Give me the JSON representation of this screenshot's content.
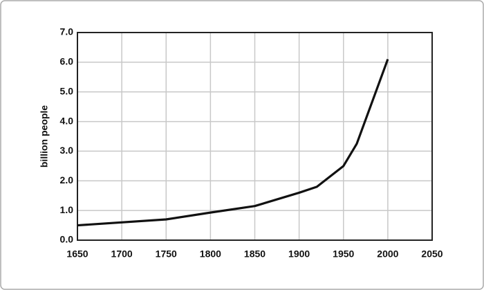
{
  "chart_data": {
    "type": "line",
    "y_label": "billion people",
    "x": [
      1650,
      1750,
      1800,
      1850,
      1900,
      1920,
      1950,
      1965,
      2000
    ],
    "series": [
      {
        "color": "#111111",
        "values": [
          0.5,
          0.7,
          0.93,
          1.15,
          1.6,
          1.8,
          2.5,
          3.25,
          6.1
        ]
      }
    ],
    "xlim": [
      1650,
      2050
    ],
    "xticks": [
      1650,
      1700,
      1750,
      1800,
      1850,
      1900,
      1950,
      2000,
      2050
    ],
    "ylim": [
      0,
      7
    ],
    "yticks": [
      {
        "value": 0,
        "label": "0.0"
      },
      {
        "value": 1,
        "label": "1.0"
      },
      {
        "value": 2,
        "label": "2.0"
      },
      {
        "value": 3,
        "label": "3.0"
      },
      {
        "value": 4,
        "label": "4.0"
      },
      {
        "value": 5,
        "label": "5.0"
      },
      {
        "value": 6,
        "label": "6.0"
      },
      {
        "value": 7,
        "label": "7.0"
      }
    ],
    "grid": true
  }
}
